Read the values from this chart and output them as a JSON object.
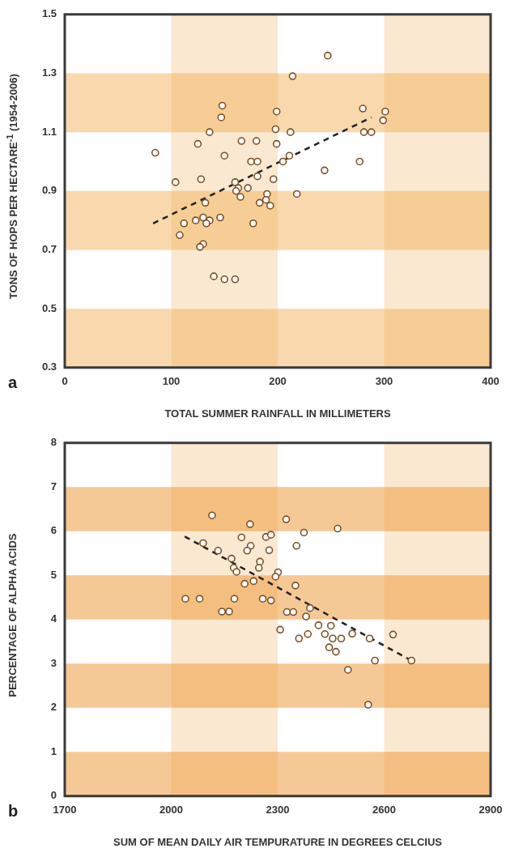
{
  "chart_data": [
    {
      "type": "scatter",
      "xlabel": "TOTAL SUMMER RAINFALL IN MILLIMETERS",
      "ylabel": "TONS OF HOPS PER HECTARE$^{-1}$ (1954-2006)",
      "annotations": [
        "a"
      ],
      "xlim": [
        0,
        400
      ],
      "xticks": [
        0,
        100,
        200,
        300,
        400
      ],
      "ylim": [
        0.3,
        1.5
      ],
      "yticks": [
        0.3,
        0.5,
        0.7,
        0.9,
        1.1,
        1.3,
        1.5
      ],
      "marker": "circle",
      "grid": false,
      "legend": false,
      "bands": [
        {
          "axis": "x",
          "from": 100,
          "to": 200,
          "color": "#f5d1a4"
        },
        {
          "axis": "x",
          "from": 300,
          "to": 400,
          "color": "#f5d1a4"
        },
        {
          "axis": "y",
          "from": 0.3,
          "to": 0.5,
          "color": "#f1b25a"
        },
        {
          "axis": "y",
          "from": 0.7,
          "to": 0.9,
          "color": "#f1b25a"
        },
        {
          "axis": "y",
          "from": 1.1,
          "to": 1.3,
          "color": "#f1b25a"
        }
      ],
      "series": [
        {
          "type": "scatter",
          "color": "#7b4f24",
          "x": [
            247,
            214,
            148,
            199,
            280,
            301,
            147,
            299,
            198,
            212,
            281,
            288,
            136,
            125,
            166,
            180,
            199,
            85,
            150,
            211,
            205,
            175,
            181,
            277,
            244,
            104,
            128,
            160,
            181,
            196,
            163,
            161,
            172,
            190,
            218,
            165,
            189,
            183,
            132,
            193,
            112,
            123,
            130,
            136,
            133,
            146,
            177,
            108,
            130,
            127,
            140,
            150,
            160
          ],
          "values": [
            1.36,
            1.29,
            1.19,
            1.17,
            1.18,
            1.17,
            1.15,
            1.14,
            1.11,
            1.1,
            1.1,
            1.1,
            1.1,
            1.06,
            1.07,
            1.07,
            1.06,
            1.03,
            1.02,
            1.02,
            1.0,
            1.0,
            1.0,
            1.0,
            0.97,
            0.93,
            0.94,
            0.93,
            0.95,
            0.94,
            0.91,
            0.9,
            0.91,
            0.89,
            0.89,
            0.88,
            0.87,
            0.86,
            0.86,
            0.85,
            0.79,
            0.8,
            0.81,
            0.8,
            0.79,
            0.81,
            0.79,
            0.75,
            0.72,
            0.71,
            0.61,
            0.6,
            0.6
          ]
        },
        {
          "type": "line",
          "color": "#222222",
          "line_style": "dashed",
          "marker": "none",
          "x": [
            83,
            288
          ],
          "values": [
            0.79,
            1.15
          ]
        }
      ]
    },
    {
      "type": "scatter",
      "xlabel": "SUM OF MEAN DAILY AIR TEMPURATURE IN DEGREES CELCIUS",
      "ylabel": "PERCENTAGE OF ALPHA ACIDS",
      "annotations": [
        "b"
      ],
      "xlim": [
        1700,
        2900
      ],
      "xticks": [
        1700,
        2000,
        2300,
        2600,
        2900
      ],
      "ylim": [
        0,
        8
      ],
      "yticks": [
        0,
        1,
        2,
        3,
        4,
        5,
        6,
        7,
        8
      ],
      "marker": "circle",
      "grid": false,
      "legend": false,
      "bands": [
        {
          "axis": "x",
          "from": 2000,
          "to": 2300,
          "color": "#f5d1a4"
        },
        {
          "axis": "x",
          "from": 2600,
          "to": 2900,
          "color": "#f5d1a4"
        },
        {
          "axis": "y",
          "from": 0,
          "to": 1,
          "color": "#eb932d"
        },
        {
          "axis": "y",
          "from": 2,
          "to": 3,
          "color": "#eb932d"
        },
        {
          "axis": "y",
          "from": 4,
          "to": 5,
          "color": "#eb932d"
        },
        {
          "axis": "y",
          "from": 6,
          "to": 7,
          "color": "#eb932d"
        }
      ],
      "series": [
        {
          "type": "scatter",
          "color": "#7b4f24",
          "x": [
            2115,
            2222,
            2324,
            2469,
            2374,
            2198,
            2267,
            2281,
            2353,
            2224,
            2214,
            2276,
            2090,
            2132,
            2170,
            2176,
            2184,
            2250,
            2247,
            2301,
            2294,
            2232,
            2207,
            2350,
            2040,
            2080,
            2178,
            2258,
            2281,
            2143,
            2163,
            2326,
            2344,
            2391,
            2380,
            2307,
            2415,
            2450,
            2360,
            2385,
            2433,
            2455,
            2479,
            2510,
            2559,
            2625,
            2445,
            2464,
            2574,
            2677,
            2498,
            2555
          ],
          "values": [
            6.36,
            6.16,
            6.27,
            6.06,
            5.97,
            5.86,
            5.87,
            5.92,
            5.67,
            5.67,
            5.56,
            5.57,
            5.73,
            5.56,
            5.38,
            5.17,
            5.08,
            5.31,
            5.17,
            5.07,
            4.97,
            4.87,
            4.81,
            4.77,
            4.47,
            4.47,
            4.47,
            4.47,
            4.43,
            4.18,
            4.18,
            4.17,
            4.17,
            4.26,
            4.07,
            3.77,
            3.87,
            3.86,
            3.57,
            3.67,
            3.67,
            3.57,
            3.57,
            3.68,
            3.57,
            3.66,
            3.37,
            3.27,
            3.07,
            3.07,
            2.86,
            2.07
          ]
        },
        {
          "type": "line",
          "color": "#222222",
          "line_style": "dashed",
          "marker": "none",
          "x": [
            2038,
            2677
          ],
          "values": [
            5.88,
            3.07
          ]
        }
      ]
    }
  ]
}
